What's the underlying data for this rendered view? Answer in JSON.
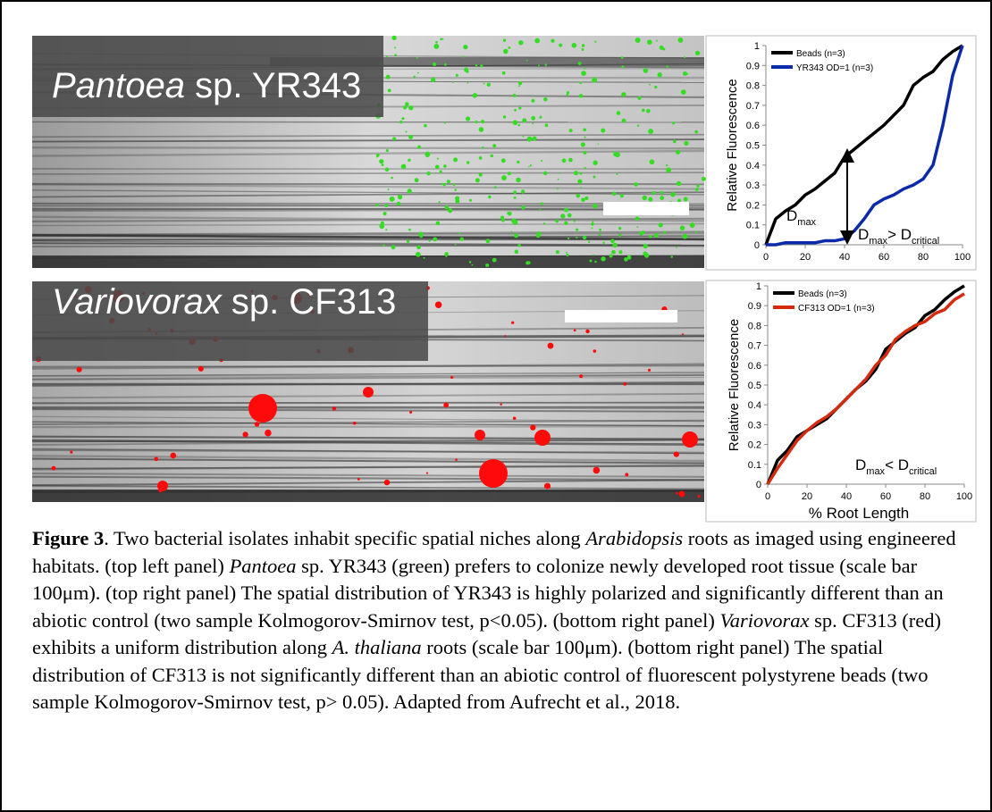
{
  "panels": [
    {
      "label": [
        {
          "text": "Pantoea",
          "italic": true
        },
        {
          "text": " sp. YR343"
        }
      ]
    },
    {
      "label": [
        {
          "text": "Variovorax",
          "italic": true
        },
        {
          "text": " sp. CF313"
        }
      ]
    }
  ],
  "chart_data": [
    {
      "type": "line",
      "y_label": "Relative Fluorescence",
      "x": [
        0,
        5,
        10,
        15,
        20,
        25,
        30,
        35,
        40,
        45,
        50,
        55,
        60,
        65,
        70,
        75,
        80,
        85,
        90,
        95,
        100
      ],
      "series": [
        {
          "name": "Beads (n=3)",
          "color": "#000000",
          "values": [
            0,
            0.13,
            0.17,
            0.2,
            0.25,
            0.28,
            0.32,
            0.36,
            0.44,
            0.48,
            0.52,
            0.56,
            0.6,
            0.65,
            0.7,
            0.8,
            0.84,
            0.87,
            0.93,
            0.97,
            1.0
          ]
        },
        {
          "name": "YR343 OD=1 (n=3)",
          "color": "#0b2aa8",
          "values": [
            0,
            0,
            0.01,
            0.01,
            0.01,
            0.01,
            0.02,
            0.02,
            0.03,
            0.07,
            0.13,
            0.2,
            0.23,
            0.25,
            0.28,
            0.3,
            0.33,
            0.4,
            0.6,
            0.85,
            1.0
          ]
        }
      ],
      "annotations": [
        {
          "parts": [
            "D",
            "max"
          ]
        },
        {
          "parts": [
            "D",
            "max",
            "> D",
            "critical"
          ]
        }
      ],
      "xlim": [
        0,
        100
      ],
      "xticks": [
        0,
        20,
        40,
        60,
        80,
        100
      ],
      "ylim": [
        0,
        1
      ],
      "yticks": [
        0,
        0.1,
        0.2,
        0.3,
        0.4,
        0.5,
        0.6,
        0.7,
        0.8,
        0.9,
        1
      ]
    },
    {
      "type": "line",
      "y_label": "Relative Fluorescence",
      "x_label": "% Root Length",
      "x": [
        0,
        5,
        10,
        15,
        20,
        25,
        30,
        35,
        40,
        45,
        50,
        55,
        60,
        65,
        70,
        75,
        80,
        85,
        90,
        95,
        100
      ],
      "series": [
        {
          "name": "Beads (n=3)",
          "color": "#000000",
          "values": [
            0,
            0.12,
            0.17,
            0.24,
            0.27,
            0.3,
            0.33,
            0.38,
            0.43,
            0.48,
            0.52,
            0.58,
            0.68,
            0.72,
            0.76,
            0.79,
            0.85,
            0.88,
            0.93,
            0.97,
            1.0
          ]
        },
        {
          "name": "CF313 OD=1 (n=3)",
          "color": "#d42a0e",
          "values": [
            0,
            0.08,
            0.15,
            0.22,
            0.27,
            0.31,
            0.34,
            0.38,
            0.43,
            0.48,
            0.53,
            0.6,
            0.65,
            0.73,
            0.77,
            0.8,
            0.82,
            0.86,
            0.88,
            0.93,
            0.96
          ]
        }
      ],
      "annotations": [
        {
          "parts": [
            "D",
            "max",
            "< D",
            "critical"
          ]
        }
      ],
      "xlim": [
        0,
        100
      ],
      "xticks": [
        0,
        20,
        40,
        60,
        80,
        100
      ],
      "ylim": [
        0,
        1
      ],
      "yticks": [
        0,
        0.1,
        0.2,
        0.3,
        0.4,
        0.5,
        0.6,
        0.7,
        0.8,
        0.9,
        1
      ]
    }
  ],
  "caption": [
    {
      "text": "Figure 3",
      "bold": true
    },
    {
      "text": ". Two bacterial isolates inhabit specific spatial niches along "
    },
    {
      "text": "Arabidopsis",
      "italic": true
    },
    {
      "text": " roots as imaged using engineered habitats. (top left panel) "
    },
    {
      "text": "Pantoea",
      "italic": true
    },
    {
      "text": " sp. YR343 (green) prefers to colonize newly developed root tissue (scale bar 100μm). (top right panel) The spatial distribution of YR343 is highly polarized and significantly different than an abiotic control (two sample Kolmogorov-Smirnov test, p<0.05). (bottom right panel) "
    },
    {
      "text": "Variovorax",
      "italic": true
    },
    {
      "text": " sp. CF313 (red) exhibits a uniform distribution along "
    },
    {
      "text": "A. thaliana",
      "italic": true
    },
    {
      "text": " roots (scale bar 100μm). (bottom right panel) The spatial distribution of CF313 is not significantly different than an abiotic control of fluorescent polystyrene beads (two sample Kolmogorov-Smirnov test, p> 0.05). Adapted from Aufrecht et al., 2018."
    }
  ]
}
